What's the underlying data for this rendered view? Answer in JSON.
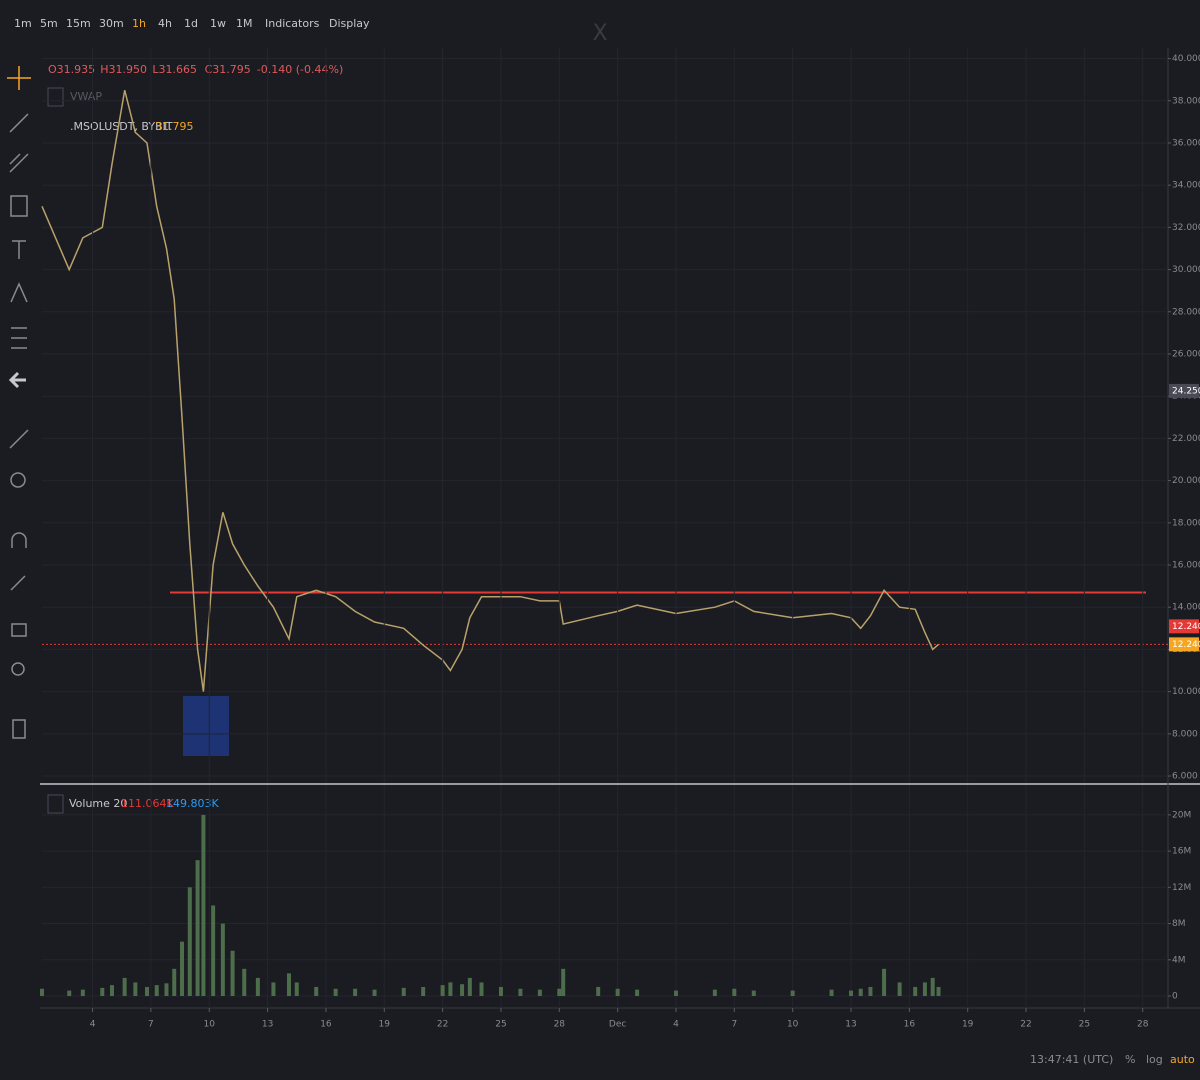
{
  "toolbar": {
    "intervals": [
      "1m",
      "5m",
      "15m",
      "30m",
      "1h",
      "4h",
      "1d",
      "1w",
      "1M"
    ],
    "active_interval": 4,
    "indicators": "Indicators",
    "display": "Display"
  },
  "watermark": "X",
  "legend": {
    "ohlc": [
      "O31.935",
      "H31.950",
      "L31.665",
      "C31.795",
      "-0.140 (-0.44%)"
    ],
    "vwap": "VWAP",
    "symbol": ".MSOLUSDT, BYBIT",
    "last_price": "31.795",
    "volume_label": "Volume 20",
    "volume_values": [
      "111.064K",
      "149.803K"
    ]
  },
  "footer": {
    "time": "13:47:41 (UTC)",
    "percent": "%",
    "log": "log",
    "auto": "auto"
  },
  "chart_data": [
    {
      "type": "line",
      "xlim": [
        1.4,
        59.3
      ],
      "ylim": [
        5.67,
        40.5
      ],
      "grid": true,
      "yticks": [
        {
          "value": 6,
          "label": "6.000"
        },
        {
          "value": 8,
          "label": "8.000"
        },
        {
          "value": 10,
          "label": "10.000"
        },
        {
          "value": 12,
          "label": "12.000"
        },
        {
          "value": 14,
          "label": "14.000"
        },
        {
          "value": 16,
          "label": "16.000"
        },
        {
          "value": 18,
          "label": "18.000"
        },
        {
          "value": 20,
          "label": "20.000"
        },
        {
          "value": 22,
          "label": "22.000"
        },
        {
          "value": 24,
          "label": "24.000"
        },
        {
          "value": 26,
          "label": "26.000"
        },
        {
          "value": 28,
          "label": "28.000"
        },
        {
          "value": 30,
          "label": "30.000"
        },
        {
          "value": 32,
          "label": "32.000"
        },
        {
          "value": 34,
          "label": "34.000"
        },
        {
          "value": 36,
          "label": "36.000"
        },
        {
          "value": 38,
          "label": "38.000"
        },
        {
          "value": 40,
          "label": "40.000"
        }
      ],
      "x": [
        1.4,
        2.8,
        3.5,
        4.5,
        5,
        5.65,
        6.2,
        6.8,
        7.3,
        7.8,
        8.2,
        8.6,
        9,
        9.4,
        9.7,
        10.2,
        10.7,
        11.2,
        11.8,
        12.5,
        13.3,
        14.1,
        14.5,
        15.5,
        16.5,
        17.5,
        18.5,
        20,
        21,
        22,
        22.4,
        23,
        23.4,
        24,
        25,
        26,
        27,
        28,
        28.2,
        30,
        31,
        32,
        34,
        36,
        37,
        38,
        40,
        42,
        43,
        43.5,
        44,
        44.7,
        45.5,
        46.3,
        46.8,
        47.2,
        47.5
      ],
      "series": [
        {
          "name": "MSOLUSDT",
          "color": "#b9a26a",
          "values": [
            33,
            30,
            31.5,
            32,
            35,
            38.5,
            36.5,
            36,
            33,
            31,
            28.6,
            23,
            17,
            12,
            10,
            16,
            18.5,
            17,
            16,
            15,
            14,
            12.5,
            14.5,
            14.8,
            14.5,
            13.8,
            13.3,
            13,
            12.2,
            11.5,
            11,
            12,
            13.5,
            14.5,
            14.5,
            14.5,
            14.3,
            14.3,
            13.2,
            13.6,
            13.8,
            14.1,
            13.7,
            14,
            14.3,
            13.8,
            13.5,
            13.7,
            13.5,
            13,
            13.6,
            14.8,
            14,
            13.9,
            12.8,
            12,
            12.24
          ]
        }
      ],
      "hlines": [
        {
          "value": 14.7,
          "color": "#e53935"
        },
        {
          "value": 12.24,
          "color": "#e53935"
        }
      ],
      "price_labels": [
        {
          "value": 12.24,
          "label": "12.240",
          "color": "#e53935"
        },
        {
          "value": 12.24,
          "label": "12.240",
          "color": "#f5a623"
        },
        {
          "value": 24.25,
          "label": "24.250",
          "color": "#4a4a55"
        }
      ]
    },
    {
      "type": "bar",
      "xlim": [
        1.4,
        59.3
      ],
      "ylim": [
        0,
        23300000
      ],
      "grid": true,
      "yticks": [
        0,
        {
          "value": 4000000,
          "label": "4M"
        },
        {
          "value": 8000000,
          "label": "8M"
        },
        {
          "value": 12000000,
          "label": "12M"
        },
        {
          "value": 16000000,
          "label": "16M"
        },
        {
          "value": 20000000,
          "label": "20M"
        }
      ],
      "xticks": [
        4,
        7,
        10,
        13,
        16,
        19,
        22,
        25,
        28,
        {
          "value": 31,
          "label": "Dec"
        },
        {
          "value": 34,
          "label": "4"
        },
        {
          "value": 37,
          "label": "7"
        },
        {
          "value": 40,
          "label": "10"
        },
        {
          "value": 43,
          "label": "13"
        },
        {
          "value": 46,
          "label": "16"
        },
        {
          "value": 49,
          "label": "19"
        },
        {
          "value": 52,
          "label": "22"
        },
        {
          "value": 55,
          "label": "25"
        },
        {
          "value": 58,
          "label": "28"
        }
      ],
      "x": [
        1.4,
        2.8,
        3.5,
        4.5,
        5,
        5.65,
        6.2,
        6.8,
        7.3,
        7.8,
        8.2,
        8.6,
        9,
        9.4,
        9.7,
        10.2,
        10.7,
        11.2,
        11.8,
        12.5,
        13.3,
        14.1,
        14.5,
        15.5,
        16.5,
        17.5,
        18.5,
        20,
        21,
        22,
        22.4,
        23,
        23.4,
        24,
        25,
        26,
        27,
        28,
        28.2,
        30,
        31,
        32,
        34,
        36,
        37,
        38,
        40,
        42,
        43,
        43.5,
        44,
        44.7,
        45.5,
        46.3,
        46.8,
        47.2,
        47.5
      ],
      "series": [
        {
          "name": "Volume",
          "color": "#4d6e4a",
          "values": [
            800000,
            600000,
            700000,
            900000,
            1200000,
            2000000,
            1500000,
            1000000,
            1200000,
            1400000,
            3000000,
            6000000,
            12000000,
            15000000,
            20000000,
            10000000,
            8000000,
            5000000,
            3000000,
            2000000,
            1500000,
            2500000,
            1500000,
            1000000,
            800000,
            800000,
            700000,
            900000,
            1000000,
            1200000,
            1500000,
            1300000,
            2000000,
            1500000,
            1000000,
            800000,
            700000,
            800000,
            3000000,
            1000000,
            800000,
            700000,
            600000,
            700000,
            800000,
            600000,
            600000,
            700000,
            600000,
            800000,
            1000000,
            3000000,
            1500000,
            1000000,
            1500000,
            2000000,
            1000000
          ]
        }
      ]
    }
  ]
}
